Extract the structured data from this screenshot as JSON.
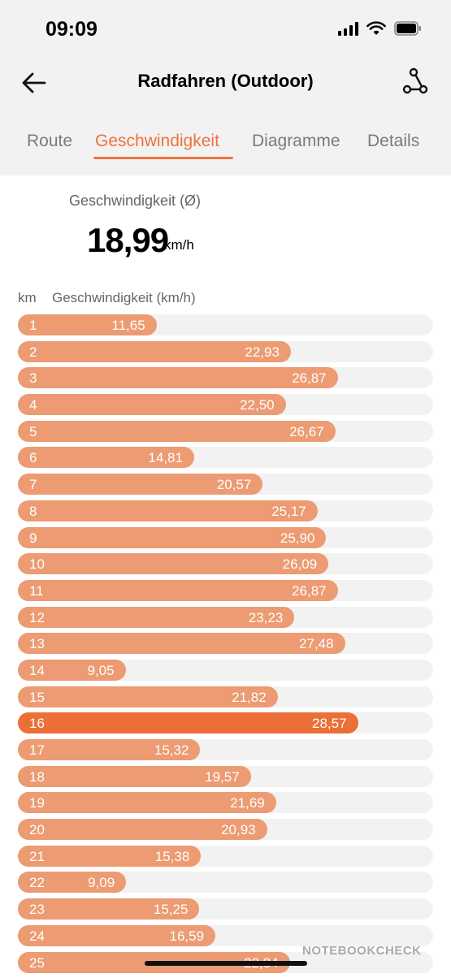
{
  "status": {
    "time": "09:09"
  },
  "header": {
    "title": "Radfahren (Outdoor)"
  },
  "tabs": [
    {
      "label": "Route",
      "active": false
    },
    {
      "label": "Geschwindigkeit",
      "active": true
    },
    {
      "label": "Diagramme",
      "active": false
    },
    {
      "label": "Details",
      "active": false
    }
  ],
  "summary": {
    "label": "Geschwindigkeit (Ø)",
    "value": "18,99",
    "unit": "km/h"
  },
  "table": {
    "col_km": "km",
    "col_speed": "Geschwindigkeit (km/h)"
  },
  "colors": {
    "accent": "#f0723b",
    "bar": "#ec9b72",
    "bar_max": "#eb6f37",
    "track": "#f2f2f2"
  },
  "chart_data": {
    "type": "bar",
    "categories": [
      "1",
      "2",
      "3",
      "4",
      "5",
      "6",
      "7",
      "8",
      "9",
      "10",
      "11",
      "12",
      "13",
      "14",
      "15",
      "16",
      "17",
      "18",
      "19",
      "20",
      "21",
      "22",
      "23",
      "24",
      "25"
    ],
    "labels": [
      "11,65",
      "22,93",
      "26,87",
      "22,50",
      "26,67",
      "14,81",
      "20,57",
      "25,17",
      "25,90",
      "26,09",
      "26,87",
      "23,23",
      "27,48",
      "9,05",
      "21,82",
      "28,57",
      "15,32",
      "19,57",
      "21,69",
      "20,93",
      "15,38",
      "9,09",
      "15,25",
      "16,59",
      "22,84"
    ],
    "values": [
      11.65,
      22.93,
      26.87,
      22.5,
      26.67,
      14.81,
      20.57,
      25.17,
      25.9,
      26.09,
      26.87,
      23.23,
      27.48,
      9.05,
      21.82,
      28.57,
      15.32,
      19.57,
      21.69,
      20.93,
      15.38,
      9.09,
      15.25,
      16.59,
      22.84
    ],
    "max_index": 15
  },
  "watermark": "NOTEBOOKCHECK"
}
